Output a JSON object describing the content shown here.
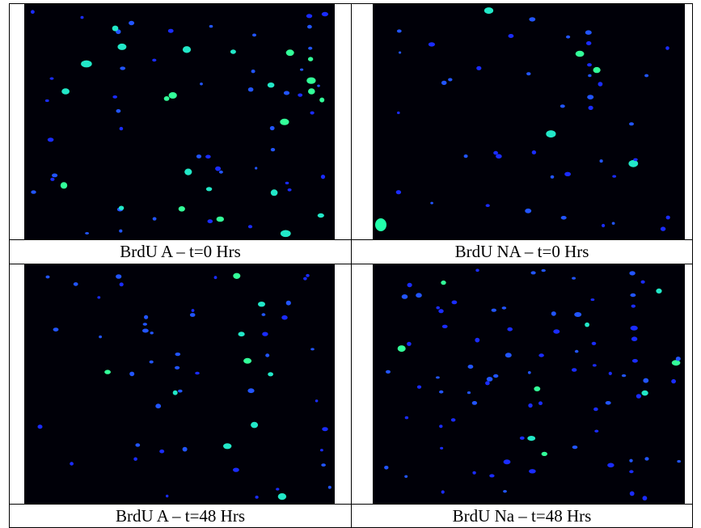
{
  "table": {
    "rows": [
      [
        "BrdU A – t=0 Hrs",
        "BrdU NA – t=0 Hrs"
      ],
      [
        "BrdU A – t=48 Hrs",
        "BrdU Na – t=48 Hrs"
      ]
    ]
  }
}
